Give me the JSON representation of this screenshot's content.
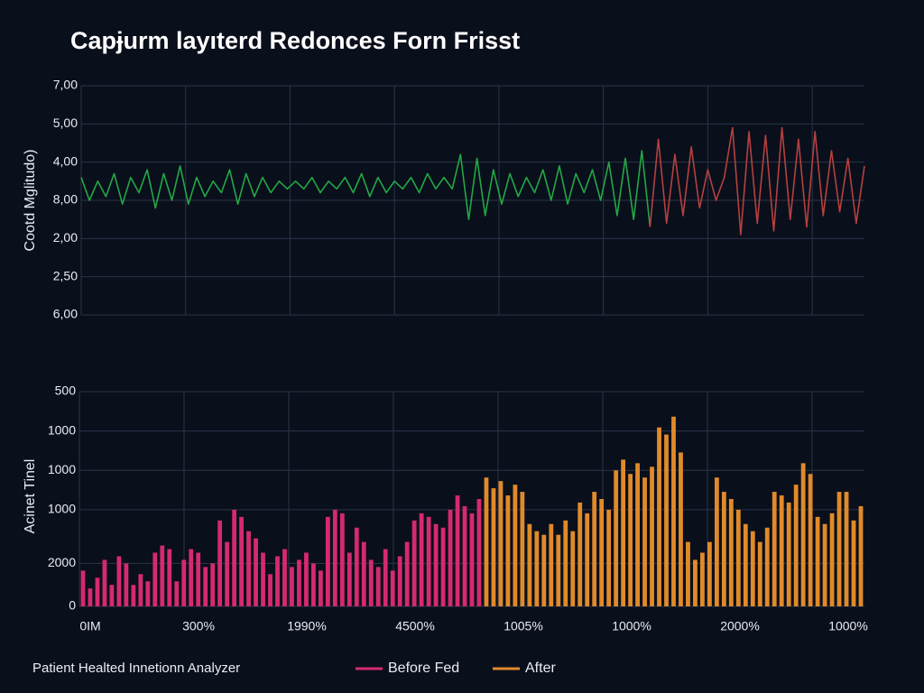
{
  "title": "Capɉurm layıterd Redonces Forn Frisst",
  "footer": "Patient Healted Innetionn Analyzer",
  "chart_data": [
    {
      "type": "line",
      "ylabel": "Cootd Mglitudo)",
      "ylim": [
        0,
        6
      ],
      "yticks": [
        {
          "value": 6,
          "label": "7,00"
        },
        {
          "value": 5,
          "label": "5,00"
        },
        {
          "value": 4,
          "label": "4,00"
        },
        {
          "value": 3,
          "label": "8,00"
        },
        {
          "value": 2,
          "label": "2,00"
        },
        {
          "value": 1,
          "label": "2,50"
        },
        {
          "value": 0,
          "label": "6,00"
        }
      ],
      "grid": true,
      "series": [
        {
          "color": "#22a845",
          "values": [
            3.6,
            3.0,
            3.5,
            3.1,
            3.7,
            2.9,
            3.6,
            3.2,
            3.8,
            2.8,
            3.7,
            3.0,
            3.9,
            2.9,
            3.6,
            3.1,
            3.5,
            3.2,
            3.8,
            2.9,
            3.7,
            3.1,
            3.6,
            3.2,
            3.5,
            3.3,
            3.5,
            3.3,
            3.6,
            3.2,
            3.5,
            3.3,
            3.6,
            3.2,
            3.7,
            3.1,
            3.6,
            3.2,
            3.5,
            3.3,
            3.6,
            3.2,
            3.7,
            3.3,
            3.6,
            3.3,
            4.2,
            2.5,
            4.1,
            2.6,
            3.8,
            2.9,
            3.7,
            3.1,
            3.6,
            3.2,
            3.8,
            3.0,
            3.9,
            2.9,
            3.7,
            3.2,
            3.8,
            3.0,
            4.0,
            2.6,
            4.1,
            2.5,
            4.3,
            2.3
          ]
        },
        {
          "color": "#b5413f",
          "values": [
            2.3,
            4.6,
            2.4,
            4.2,
            2.6,
            4.4,
            2.8,
            3.8,
            3.0,
            3.6,
            4.9,
            2.1,
            4.8,
            2.4,
            4.7,
            2.2,
            4.9,
            2.5,
            4.6,
            2.3,
            4.8,
            2.6,
            4.3,
            2.7,
            4.1,
            2.4,
            3.9
          ]
        }
      ]
    },
    {
      "type": "bar",
      "ylabel": "Acinet Tinel",
      "ylim": [
        0,
        6
      ],
      "yticks": [
        {
          "value": 6,
          "label": "500"
        },
        {
          "value": 4.9,
          "label": "1000"
        },
        {
          "value": 3.8,
          "label": "1000"
        },
        {
          "value": 2.7,
          "label": "1000"
        },
        {
          "value": 1.2,
          "label": "2000"
        },
        0
      ],
      "grid": true,
      "x_tick_labels": [
        "0IM",
        "300%",
        "1990%",
        "4500%",
        "1005%",
        "1000%",
        "2000%",
        "1000%"
      ],
      "series": [
        {
          "name": "Before Fed",
          "color": "#d42a6e",
          "values": [
            1.0,
            0.5,
            0.8,
            1.3,
            0.6,
            1.4,
            1.2,
            0.6,
            0.9,
            0.7,
            1.5,
            1.7,
            1.6,
            0.7,
            1.3,
            1.6,
            1.5,
            1.1,
            1.2,
            2.4,
            1.8,
            2.7,
            2.5,
            2.1,
            1.9,
            1.5,
            0.9,
            1.4,
            1.6,
            1.1,
            1.3,
            1.5,
            1.2,
            1.0,
            2.5,
            2.7,
            2.6,
            1.5,
            2.2,
            1.8,
            1.3,
            1.1,
            1.6,
            1.0,
            1.4,
            1.8,
            2.4,
            2.6,
            2.5,
            2.3,
            2.2,
            2.7,
            3.1,
            2.8,
            2.6,
            3.0
          ]
        },
        {
          "name": "After",
          "color": "#e08a2a",
          "values": [
            3.6,
            3.3,
            3.5,
            3.1,
            3.4,
            3.2,
            2.3,
            2.1,
            2.0,
            2.3,
            2.0,
            2.4,
            2.1,
            2.9,
            2.6,
            3.2,
            3.0,
            2.7,
            3.8,
            4.1,
            3.7,
            4.0,
            3.6,
            3.9,
            5.0,
            4.8,
            5.3,
            4.3,
            1.8,
            1.3,
            1.5,
            1.8,
            3.6,
            3.2,
            3.0,
            2.7,
            2.3,
            2.1,
            1.8,
            2.2,
            3.2,
            3.1,
            2.9,
            3.4,
            4.0,
            3.7,
            2.5,
            2.3,
            2.6,
            3.2,
            3.2,
            2.4,
            2.8
          ]
        }
      ]
    }
  ]
}
